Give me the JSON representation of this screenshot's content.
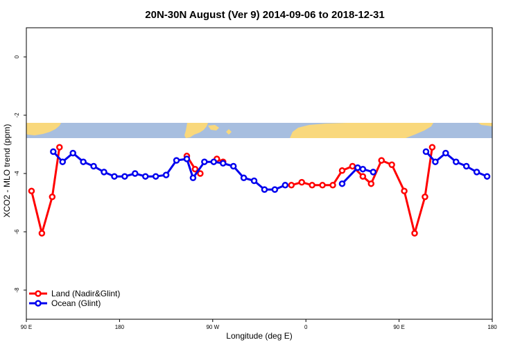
{
  "chart_data": {
    "type": "line",
    "title": "20N-30N August (Ver 9)   2014-09-06 to 2018-12-31",
    "xlabel": "Longitude (deg E)",
    "ylabel": "XCO2 - MLO trend (ppm)",
    "xlim": [
      90,
      540
    ],
    "ylim": [
      -9,
      1
    ],
    "x_ticks": [
      {
        "value": 90,
        "label": "90 E"
      },
      {
        "value": 180,
        "label": "180"
      },
      {
        "value": 270,
        "label": "90 W"
      },
      {
        "value": 360,
        "label": "0"
      },
      {
        "value": 450,
        "label": "90 E"
      },
      {
        "value": 540,
        "label": "180"
      }
    ],
    "y_ticks": [
      {
        "value": 0,
        "label": "0"
      },
      {
        "value": -2,
        "label": "-2"
      },
      {
        "value": -4,
        "label": "-4"
      },
      {
        "value": -6,
        "label": "-6"
      },
      {
        "value": -8,
        "label": "-8"
      }
    ],
    "legend_position": "bottom-left",
    "series": [
      {
        "name": "Land (Nadir&Glint)",
        "color": "#ff0000",
        "segments": [
          [
            [
              95,
              -4.6
            ],
            [
              105,
              -6.05
            ],
            [
              115,
              -4.8
            ],
            [
              122,
              -3.1
            ]
          ],
          [
            [
              245,
              -3.4
            ],
            [
              253,
              -3.85
            ],
            [
              258,
              -4.0
            ]
          ],
          [
            [
              274,
              -3.5
            ],
            [
              280,
              -3.6
            ]
          ],
          [
            [
              346,
              -4.4
            ],
            [
              356,
              -4.3
            ],
            [
              366,
              -4.4
            ],
            [
              376,
              -4.4
            ],
            [
              386,
              -4.4
            ],
            [
              395,
              -3.9
            ],
            [
              405,
              -3.75
            ],
            [
              415,
              -4.1
            ],
            [
              423,
              -4.35
            ],
            [
              433,
              -3.55
            ],
            [
              443,
              -3.7
            ],
            [
              455,
              -4.6
            ],
            [
              465,
              -6.05
            ],
            [
              475,
              -4.8
            ],
            [
              482,
              -3.1
            ]
          ]
        ]
      },
      {
        "name": "Ocean (Glint)",
        "color": "#0000ee",
        "segments": [
          [
            [
              116,
              -3.25
            ],
            [
              125,
              -3.6
            ],
            [
              135,
              -3.3
            ],
            [
              145,
              -3.6
            ],
            [
              155,
              -3.75
            ],
            [
              165,
              -3.95
            ],
            [
              175,
              -4.1
            ],
            [
              185,
              -4.1
            ],
            [
              195,
              -4.0
            ],
            [
              205,
              -4.1
            ],
            [
              215,
              -4.1
            ],
            [
              225,
              -4.05
            ],
            [
              235,
              -3.55
            ],
            [
              245,
              -3.5
            ],
            [
              251,
              -4.15
            ],
            [
              262,
              -3.6
            ],
            [
              271,
              -3.6
            ],
            [
              280,
              -3.65
            ],
            [
              290,
              -3.75
            ],
            [
              300,
              -4.15
            ],
            [
              310,
              -4.25
            ],
            [
              320,
              -4.55
            ],
            [
              330,
              -4.55
            ],
            [
              340,
              -4.4
            ]
          ],
          [
            [
              395,
              -4.35
            ],
            [
              410,
              -3.8
            ],
            [
              415,
              -3.85
            ],
            [
              425,
              -3.95
            ]
          ],
          [
            [
              476,
              -3.25
            ],
            [
              485,
              -3.6
            ],
            [
              495,
              -3.3
            ],
            [
              505,
              -3.6
            ],
            [
              515,
              -3.75
            ],
            [
              525,
              -3.95
            ],
            [
              535,
              -4.1
            ]
          ]
        ]
      }
    ],
    "map_strip": {
      "ocean_color": "#a7bedf",
      "land_color": "#f9d87c"
    }
  }
}
